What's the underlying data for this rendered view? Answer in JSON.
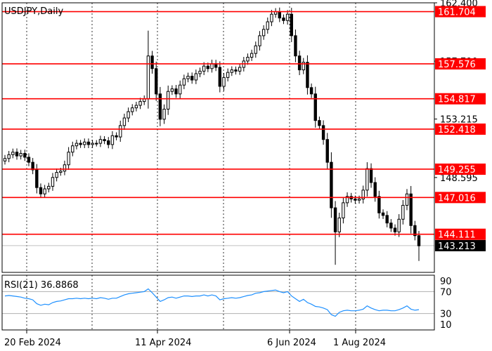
{
  "window": {
    "title": "USDJPY,Daily"
  },
  "chart_data": {
    "type": "candlestick",
    "symbol": "USDJPY",
    "timeframe": "Daily",
    "ylim": [
      141.1,
      162.4
    ],
    "y_tick_labels": [
      {
        "value": 162.4,
        "label": "162.400"
      },
      {
        "value": 157.79,
        "label": "157.790"
      },
      {
        "value": 153.215,
        "label": "153.215"
      },
      {
        "value": 148.595,
        "label": "148.595"
      }
    ],
    "x_tick_labels": [
      "20 Feb 2024",
      "11 Apr 2024",
      "6 Jun 2024",
      "1 Aug 2024"
    ],
    "levels": [
      {
        "value": 161.704,
        "label": "161.704",
        "color": "#ff0000"
      },
      {
        "value": 157.576,
        "label": "157.576",
        "color": "#ff0000"
      },
      {
        "value": 154.817,
        "label": "154.817",
        "color": "#ff0000"
      },
      {
        "value": 152.418,
        "label": "152.418",
        "color": "#ff0000"
      },
      {
        "value": 149.255,
        "label": "149.255",
        "color": "#ff0000"
      },
      {
        "value": 147.016,
        "label": "147.016",
        "color": "#ff0000"
      },
      {
        "value": 144.111,
        "label": "144.111",
        "color": "#ff0000"
      }
    ],
    "current_price": {
      "value": 143.213,
      "label": "143.213"
    },
    "closes": [
      150.1,
      150.4,
      150.6,
      150.3,
      150.5,
      150.2,
      149.8,
      149.2,
      147.8,
      147.3,
      147.7,
      147.9,
      148.6,
      149.0,
      149.1,
      149.6,
      150.6,
      151.1,
      151.3,
      151.2,
      151.4,
      151.2,
      151.3,
      151.3,
      151.6,
      151.5,
      151.2,
      151.9,
      151.8,
      152.7,
      153.3,
      153.8,
      154.1,
      154.3,
      154.6,
      154.8,
      158.2,
      157.2,
      155.2,
      153.2,
      154.0,
      155.4,
      155.6,
      155.2,
      155.9,
      156.4,
      156.6,
      156.3,
      156.8,
      157.0,
      157.4,
      157.2,
      157.6,
      157.3,
      155.8,
      156.5,
      156.9,
      157.1,
      157.0,
      157.3,
      157.8,
      158.1,
      158.4,
      159.0,
      159.8,
      160.3,
      160.9,
      161.5,
      161.7,
      161.2,
      161.0,
      161.5,
      159.8,
      158.2,
      157.1,
      157.7,
      155.7,
      155.2,
      153.1,
      152.7,
      151.6,
      149.8,
      146.2,
      144.3,
      145.4,
      146.6,
      147.1,
      146.9,
      146.8,
      146.9,
      147.6,
      149.3,
      148.2,
      147.1,
      145.8,
      145.6,
      145.0,
      144.6,
      144.3,
      145.3,
      146.4,
      147.3,
      144.8,
      144.0,
      143.2
    ],
    "rsi": {
      "label": "RSI(21) 36.8868",
      "ylim": [
        0,
        100
      ],
      "levels": [
        70,
        30
      ],
      "scale_labels": [
        "90",
        "70",
        "30",
        "10"
      ],
      "color": "#1e90ff",
      "values": [
        62,
        63,
        62,
        61,
        60,
        58,
        57,
        55,
        48,
        45,
        47,
        46,
        50,
        52,
        53,
        55,
        57,
        57,
        58,
        57,
        58,
        57,
        58,
        57,
        59,
        58,
        56,
        58,
        58,
        61,
        64,
        66,
        67,
        68,
        69,
        70,
        75,
        68,
        60,
        52,
        55,
        59,
        60,
        58,
        60,
        62,
        62,
        61,
        62,
        62,
        64,
        62,
        64,
        62,
        55,
        57,
        58,
        59,
        58,
        59,
        61,
        63,
        64,
        67,
        68,
        70,
        71,
        72,
        73,
        70,
        68,
        70,
        62,
        57,
        52,
        56,
        50,
        47,
        43,
        42,
        40,
        37,
        28,
        25,
        32,
        35,
        36,
        35,
        35,
        36,
        38,
        44,
        40,
        37,
        35,
        36,
        36,
        35,
        35,
        37,
        40,
        44,
        38,
        36,
        37
      ]
    }
  }
}
